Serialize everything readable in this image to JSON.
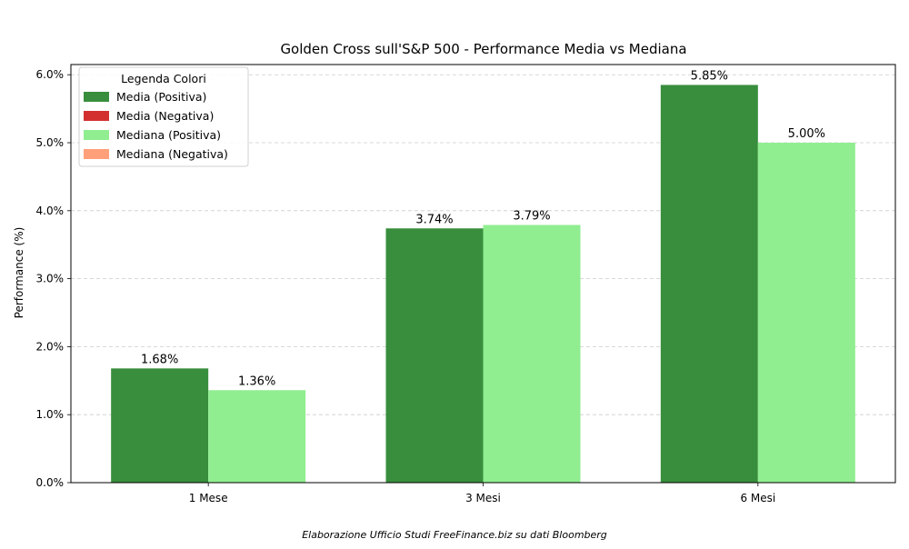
{
  "chart_data": {
    "type": "bar",
    "title": "Golden Cross sull'S&P 500 - Performance Media vs Mediana",
    "xlabel": "",
    "ylabel": "Performance (%)",
    "categories": [
      "1 Mese",
      "3 Mesi",
      "6 Mesi"
    ],
    "series": [
      {
        "name": "Media",
        "values": [
          1.68,
          3.74,
          5.85
        ],
        "labels": [
          "1.68%",
          "3.74%",
          "5.85%"
        ],
        "color": "#388e3c"
      },
      {
        "name": "Mediana",
        "values": [
          1.36,
          3.79,
          5.0
        ],
        "labels": [
          "1.36%",
          "3.79%",
          "5.00%"
        ],
        "color": "#90ee90"
      }
    ],
    "ylim": [
      0,
      6.15
    ],
    "yticks": [
      0,
      1,
      2,
      3,
      4,
      5,
      6
    ],
    "ytick_labels": [
      "0.0%",
      "1.0%",
      "2.0%",
      "3.0%",
      "4.0%",
      "5.0%",
      "6.0%"
    ],
    "grid": "y, dashed",
    "legend": {
      "title": "Legenda Colori",
      "placement": "top-left",
      "entries": [
        {
          "label": "Media (Positiva)",
          "color": "#388e3c"
        },
        {
          "label": "Media (Negativa)",
          "color": "#d32f2f"
        },
        {
          "label": "Mediana (Positiva)",
          "color": "#90ee90"
        },
        {
          "label": "Mediana (Negativa)",
          "color": "#ffa07a"
        }
      ]
    }
  },
  "footer": "Elaborazione Ufficio Studi FreeFinance.biz su dati Bloomberg"
}
